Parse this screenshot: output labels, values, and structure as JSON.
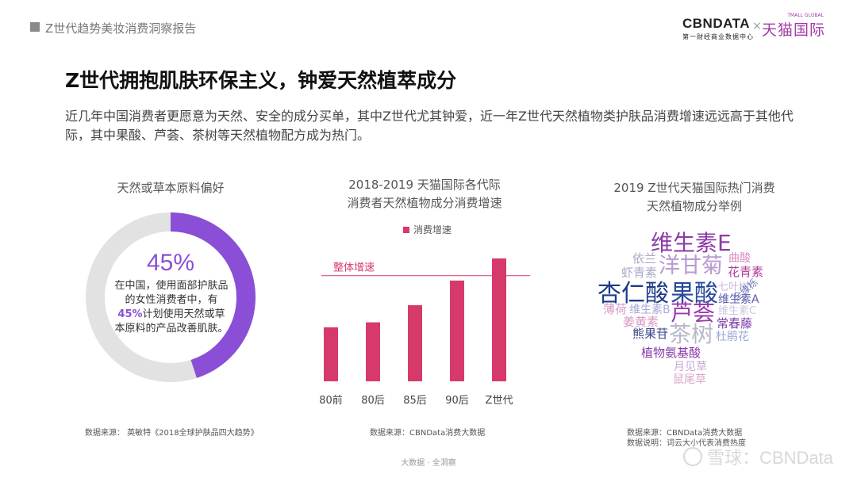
{
  "header": {
    "report_title": "Z世代趋势美妆消费洞察报告",
    "logo_cbn": "CBNDATA",
    "logo_cbn_sub": "第一财经商业数据中心",
    "logo_x": "×",
    "logo_tmall": "天猫国际",
    "logo_tmall_small": "TMALL GLOBAL"
  },
  "main": {
    "title": "Z世代拥抱肌肤环保主义，钟爱天然植萃成分",
    "intro": "近几年中国消费者更愿意为天然、安全的成分买单，其中Z世代尤其钟爱，近一年Z世代天然植物类护肤品消费增速远远高于其他代际，其中果酸、芦荟、茶树等天然植物配方成为热门。"
  },
  "panel1": {
    "title": "天然或草本原料偏好",
    "pct_label": "45%",
    "text_a": "在中国，使用面部护肤品的女性消费者中，有",
    "text_b": "45%",
    "text_c": "计划使用天然或草本原料的产品改善肌肤。",
    "source": "数据来源：  英敏特《2018全球护肤品四大趋势》"
  },
  "panel2": {
    "title_line1": "2018-2019 天猫国际各代际",
    "title_line2": "消费者天然植物成分消费增速",
    "source": "数据来源：CBNData消费大数据"
  },
  "panel3": {
    "title_line1": "2019 Z世代天猫国际热门消费",
    "title_line2": "天然植物成分举例",
    "source_line1": "数据来源：CBNData消费大数据",
    "source_line2": "数据说明：词云大小代表消费热度",
    "words": [
      {
        "text": "维生素E",
        "color": "#8e3aa8"
      },
      {
        "text": "依兰",
        "color": "#a8a8c8"
      },
      {
        "text": "洋甘菊",
        "color": "#b89ad4"
      },
      {
        "text": "曲酸",
        "color": "#d88ac0"
      },
      {
        "text": "虾青素",
        "color": "#a8a8c8"
      },
      {
        "text": "花青素",
        "color": "#b03a9a"
      },
      {
        "text": "杏仁酸",
        "color": "#1f3a8a"
      },
      {
        "text": "果酸",
        "color": "#2a4a9a"
      },
      {
        "text": "七叶树",
        "color": "#c8b8e0"
      },
      {
        "text": "全缘栎",
        "color": "#6a7ab8"
      },
      {
        "text": "维生素A",
        "color": "#5a5ab0"
      },
      {
        "text": "薄荷",
        "color": "#d898c8"
      },
      {
        "text": "维生素B",
        "color": "#a8a8d8"
      },
      {
        "text": "芦荟",
        "color": "#9a3ab0"
      },
      {
        "text": "维生素C",
        "color": "#c8c8e0"
      },
      {
        "text": "姜黄素",
        "color": "#d898c8"
      },
      {
        "text": "常春藤",
        "color": "#7a3aa8"
      },
      {
        "text": "熊果苷",
        "color": "#3a4a8a"
      },
      {
        "text": "茶树",
        "color": "#b8b8c8"
      },
      {
        "text": "杜鹃花",
        "color": "#9aa8d8"
      },
      {
        "text": "植物氨基酸",
        "color": "#8a3aa8"
      },
      {
        "text": "月见草",
        "color": "#c8a8d8"
      },
      {
        "text": "鼠尾草",
        "color": "#d8a8c8"
      }
    ]
  },
  "chart_data": {
    "type": "bar",
    "categories": [
      "80前",
      "80后",
      "85后",
      "90后",
      "Z世代"
    ],
    "series": [
      {
        "name": "消费增速",
        "values": [
          22,
          24,
          31,
          41,
          50
        ]
      }
    ],
    "ylim": [
      0,
      60
    ],
    "reference_line": {
      "label": "整体增速",
      "value": 43
    },
    "legend": "top-center",
    "bar_color": "#d63a6a"
  },
  "footer": {
    "text": "大数据 · 全洞察",
    "watermark": "雪球：CBNData"
  }
}
